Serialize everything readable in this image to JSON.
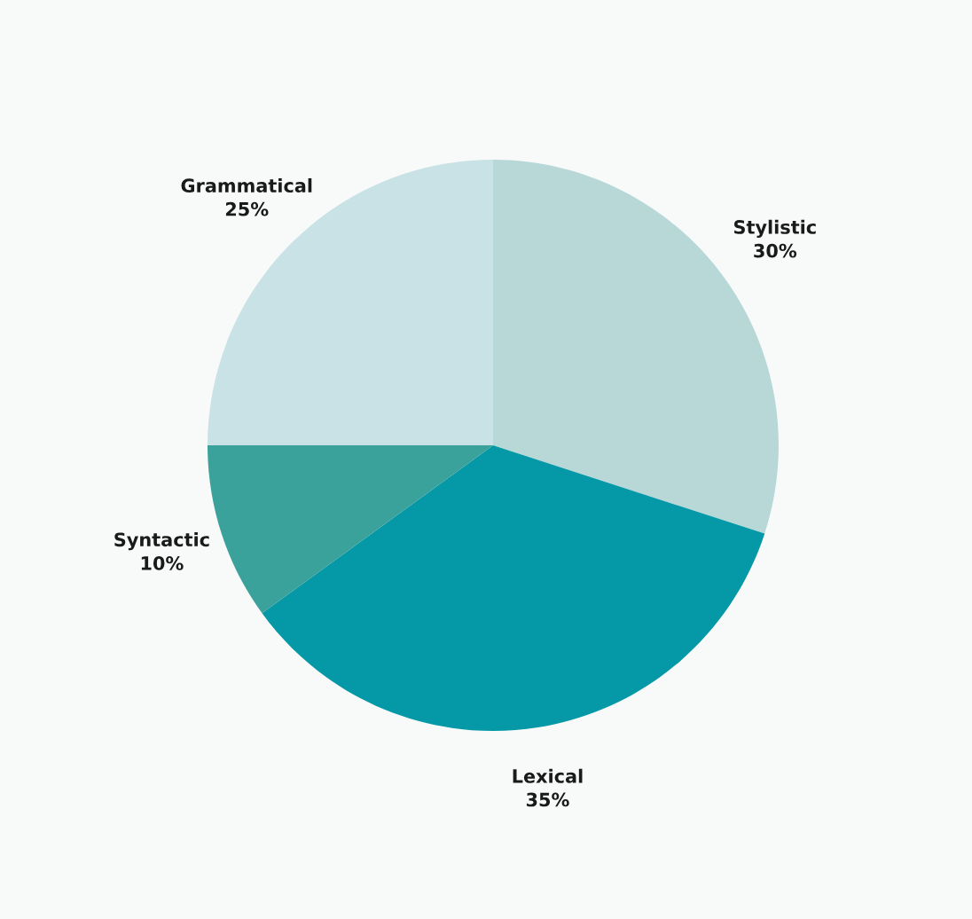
{
  "chart_data": {
    "type": "pie",
    "categories": [
      "Stylistic",
      "Lexical",
      "Syntactic",
      "Grammatical"
    ],
    "values": [
      30,
      35,
      10,
      25
    ],
    "value_labels": [
      "30%",
      "35%",
      "10%",
      "25%"
    ],
    "colors": [
      "#b8d8d8",
      "#0598a6",
      "#3aa19b",
      "#c8e2e5"
    ],
    "legend": false
  }
}
